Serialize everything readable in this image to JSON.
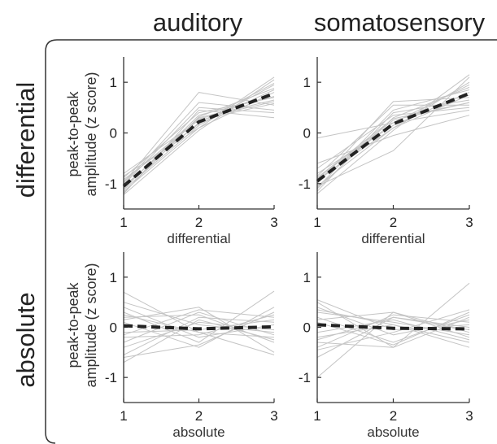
{
  "chart_data": {
    "type": "line",
    "column_titles": [
      "auditory",
      "somatosensory"
    ],
    "row_titles": [
      "differential",
      "absolute"
    ],
    "ylabel_line1": "peak-to-peak",
    "ylabel_line2": "amplitude (z score)",
    "x": [
      1,
      2,
      3
    ],
    "xlim": [
      1,
      3
    ],
    "ylim": [
      -1.5,
      1.5
    ],
    "yticks": [
      -1,
      0,
      1
    ],
    "panels": [
      {
        "column": "auditory",
        "row": "differential",
        "xlabel": "differential",
        "mean": [
          -1.05,
          0.22,
          0.78
        ],
        "subjects": [
          [
            -1.18,
            0.32,
            0.88
          ],
          [
            -1.12,
            0.15,
            0.95
          ],
          [
            -0.95,
            0.28,
            0.62
          ],
          [
            -1.22,
            0.05,
            1.05
          ],
          [
            -0.88,
            0.4,
            0.7
          ],
          [
            -1.0,
            0.6,
            0.45
          ],
          [
            -1.15,
            0.1,
            0.8
          ],
          [
            -0.8,
            0.25,
            0.58
          ],
          [
            -1.1,
            0.35,
            0.72
          ],
          [
            -1.05,
            0.2,
            0.98
          ],
          [
            -0.98,
            0.8,
            0.55
          ],
          [
            -1.2,
            0.45,
            0.3
          ],
          [
            -0.92,
            0.18,
            0.85
          ],
          [
            -1.08,
            0.3,
            0.65
          ],
          [
            -0.85,
            0.1,
            1.1
          ],
          [
            -1.02,
            0.5,
            0.4
          ]
        ]
      },
      {
        "column": "somatosensory",
        "row": "differential",
        "xlabel": "differential",
        "mean": [
          -0.95,
          0.18,
          0.78
        ],
        "subjects": [
          [
            -1.1,
            0.3,
            0.9
          ],
          [
            -1.05,
            0.1,
            1.0
          ],
          [
            -0.9,
            0.25,
            0.6
          ],
          [
            -1.2,
            0.05,
            1.15
          ],
          [
            -0.85,
            0.55,
            0.55
          ],
          [
            -0.6,
            -0.05,
            0.35
          ],
          [
            -1.0,
            0.62,
            0.7
          ],
          [
            -0.8,
            0.15,
            0.8
          ],
          [
            -1.15,
            0.4,
            0.65
          ],
          [
            -0.95,
            0.2,
            0.95
          ],
          [
            -1.05,
            -0.35,
            1.1
          ],
          [
            -0.7,
            0.35,
            0.5
          ],
          [
            -0.92,
            0.1,
            0.75
          ],
          [
            -1.08,
            0.45,
            0.85
          ],
          [
            -0.88,
            0.28,
            0.6
          ],
          [
            -0.1,
            0.2,
            0.45
          ]
        ]
      },
      {
        "column": "auditory",
        "row": "absolute",
        "xlabel": "absolute",
        "mean": [
          0.03,
          -0.03,
          0.01
        ],
        "subjects": [
          [
            0.7,
            -0.1,
            -0.2
          ],
          [
            -0.55,
            0.2,
            0.1
          ],
          [
            0.3,
            -0.3,
            0.72
          ],
          [
            -0.4,
            0.1,
            -0.05
          ],
          [
            0.15,
            0.4,
            -0.5
          ],
          [
            -0.2,
            -0.15,
            0.25
          ],
          [
            0.5,
            0.05,
            -0.1
          ],
          [
            -0.6,
            -0.35,
            0.3
          ],
          [
            0.2,
            0.25,
            -0.3
          ],
          [
            -0.1,
            -0.05,
            0.15
          ],
          [
            0.4,
            -0.2,
            0.05
          ],
          [
            -0.3,
            0.3,
            -0.15
          ],
          [
            0.1,
            -0.4,
            0.4
          ],
          [
            -0.7,
            0.15,
            -0.25
          ],
          [
            0.25,
            -0.1,
            -0.55
          ],
          [
            -0.15,
            0.35,
            0.2
          ]
        ]
      },
      {
        "column": "somatosensory",
        "row": "absolute",
        "xlabel": "absolute",
        "mean": [
          0.05,
          -0.02,
          -0.03
        ],
        "subjects": [
          [
            -1.0,
            0.3,
            -0.2
          ],
          [
            0.5,
            -0.4,
            0.88
          ],
          [
            0.3,
            0.1,
            -0.15
          ],
          [
            -0.4,
            0.25,
            0.1
          ],
          [
            0.2,
            -0.3,
            0.25
          ],
          [
            -0.2,
            0.05,
            -0.4
          ],
          [
            0.4,
            -0.15,
            0.15
          ],
          [
            -0.6,
            0.2,
            -0.05
          ],
          [
            0.1,
            -0.35,
            0.3
          ],
          [
            -0.1,
            0.15,
            -0.25
          ],
          [
            0.55,
            -0.05,
            0.05
          ],
          [
            -0.3,
            -0.4,
            0.2
          ],
          [
            0.15,
            0.3,
            -0.1
          ],
          [
            -0.45,
            -0.1,
            0.35
          ],
          [
            0.35,
            0.05,
            -0.3
          ],
          [
            -0.25,
            0.2,
            0.0
          ]
        ]
      }
    ]
  }
}
